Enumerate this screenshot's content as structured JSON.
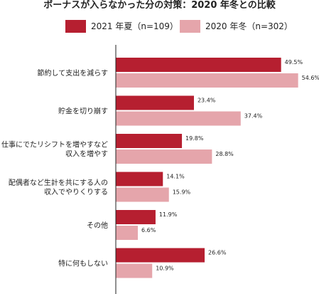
{
  "chart_data": {
    "type": "bar",
    "orientation": "horizontal",
    "title": "ボーナスが入らなかった分の対策：2020 年冬との比較",
    "categories": [
      [
        "節約して支出を減らす"
      ],
      [
        "貯金を切り崩す"
      ],
      [
        "仕事にでたリシフトを増やすなど",
        "収入を増やす"
      ],
      [
        "配偶者など生計を共にする人の",
        "収入でやりくりする"
      ],
      [
        "その他"
      ],
      [
        "特に何もしない"
      ]
    ],
    "series": [
      {
        "name": "2021 年夏（n=109）",
        "color": "#b61f30",
        "values": [
          49.5,
          23.4,
          19.8,
          14.1,
          11.9,
          26.6
        ],
        "labels": [
          "49.5%",
          "23.4%",
          "19.8%",
          "14.1%",
          "11.9%",
          "26.6%"
        ]
      },
      {
        "name": "2020 年冬（n=302）",
        "color": "#e5a5ab",
        "values": [
          54.6,
          37.4,
          28.8,
          15.9,
          6.6,
          10.9
        ],
        "labels": [
          "54.6%",
          "37.4%",
          "28.8%",
          "15.9%",
          "6.6%",
          "10.9%"
        ]
      }
    ],
    "xlim": [
      0,
      100
    ],
    "grid": false,
    "legend": "top"
  }
}
